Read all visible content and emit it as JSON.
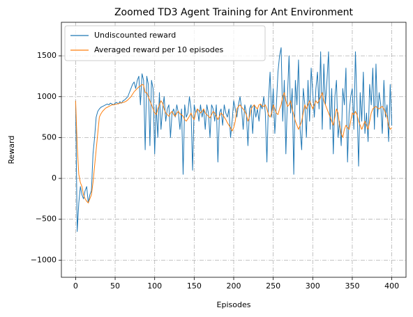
{
  "chart_data": {
    "type": "line",
    "title": "Zoomed TD3 Agent Training for Ant Environment",
    "xlabel": "Episodes",
    "ylabel": "Reward",
    "x": [
      0,
      2,
      4,
      6,
      8,
      10,
      12,
      14,
      16,
      18,
      20,
      22,
      24,
      26,
      28,
      30,
      32,
      34,
      36,
      38,
      40,
      42,
      44,
      46,
      48,
      50,
      52,
      54,
      56,
      58,
      60,
      62,
      64,
      66,
      68,
      70,
      72,
      74,
      76,
      78,
      80,
      82,
      84,
      86,
      88,
      90,
      92,
      94,
      96,
      98,
      100,
      102,
      104,
      106,
      108,
      110,
      112,
      114,
      116,
      118,
      120,
      122,
      124,
      126,
      128,
      130,
      132,
      134,
      136,
      138,
      140,
      142,
      144,
      146,
      148,
      150,
      152,
      154,
      156,
      158,
      160,
      162,
      164,
      166,
      168,
      170,
      172,
      174,
      176,
      178,
      180,
      182,
      184,
      186,
      188,
      190,
      192,
      194,
      196,
      198,
      200,
      202,
      204,
      206,
      208,
      210,
      212,
      214,
      216,
      218,
      220,
      222,
      224,
      226,
      228,
      230,
      232,
      234,
      236,
      238,
      240,
      242,
      244,
      246,
      248,
      250,
      252,
      254,
      256,
      258,
      260,
      262,
      264,
      266,
      268,
      270,
      272,
      274,
      276,
      278,
      280,
      282,
      284,
      286,
      288,
      290,
      292,
      294,
      296,
      298,
      300,
      302,
      304,
      306,
      308,
      310,
      312,
      314,
      316,
      318,
      320,
      322,
      324,
      326,
      328,
      330,
      332,
      334,
      336,
      338,
      340,
      342,
      344,
      346,
      348,
      350,
      352,
      354,
      356,
      358,
      360,
      362,
      364,
      366,
      368,
      370,
      372,
      374,
      376,
      378,
      380,
      382,
      384,
      386,
      388,
      390,
      392,
      394,
      396,
      398,
      400
    ],
    "series": [
      {
        "name": "Undiscounted reward",
        "color": "#1f77b4",
        "values": [
          950,
          -650,
          -300,
          -100,
          -200,
          -250,
          -150,
          -100,
          -300,
          -200,
          -150,
          300,
          500,
          750,
          820,
          850,
          870,
          880,
          890,
          900,
          910,
          900,
          920,
          910,
          900,
          920,
          930,
          910,
          940,
          920,
          950,
          960,
          980,
          1000,
          1050,
          1100,
          1150,
          1180,
          1100,
          1200,
          1250,
          900,
          1280,
          1200,
          350,
          1250,
          1150,
          400,
          1200,
          1100,
          300,
          900,
          500,
          1050,
          600,
          850,
          1000,
          700,
          850,
          900,
          500,
          800,
          850,
          750,
          900,
          800,
          600,
          850,
          50,
          900,
          750,
          800,
          1000,
          850,
          100,
          900,
          800,
          850,
          700,
          900,
          750,
          850,
          600,
          900,
          800,
          500,
          900,
          850,
          700,
          900,
          200,
          800,
          850,
          650,
          900,
          800,
          750,
          850,
          500,
          700,
          950,
          850,
          750,
          900,
          1000,
          850,
          600,
          900,
          800,
          400,
          850,
          900,
          550,
          900,
          750,
          850,
          700,
          900,
          850,
          1000,
          800,
          200,
          950,
          1300,
          750,
          1100,
          550,
          900,
          1300,
          1500,
          1600,
          700,
          1200,
          300,
          1000,
          1500,
          800,
          1100,
          50,
          1200,
          900,
          1450,
          600,
          350,
          1100,
          900,
          500,
          1200,
          700,
          1350,
          1050,
          750,
          1100,
          1300,
          850,
          1550,
          600,
          1400,
          900,
          1200,
          1550,
          600,
          1100,
          300,
          1000,
          1200,
          500,
          700,
          400,
          1100,
          900,
          1350,
          200,
          800,
          1000,
          1100,
          600,
          1550,
          900,
          150,
          1050,
          700,
          1300,
          550,
          800,
          450,
          1150,
          900,
          1350,
          600,
          1400,
          750,
          1050,
          900,
          550,
          1200,
          750,
          900,
          450,
          1150,
          650
        ]
      },
      {
        "name": "Averaged reward per 10 episodes",
        "color": "#ff7f0e",
        "values": [
          950,
          400,
          50,
          -50,
          -100,
          -200,
          -250,
          -280,
          -300,
          -250,
          -200,
          -50,
          150,
          350,
          550,
          750,
          790,
          820,
          840,
          860,
          870,
          880,
          890,
          900,
          900,
          905,
          910,
          915,
          920,
          925,
          930,
          935,
          945,
          960,
          980,
          1000,
          1030,
          1060,
          1080,
          1100,
          1120,
          1130,
          1150,
          1140,
          1050,
          1050,
          1000,
          950,
          900,
          850,
          800,
          780,
          850,
          900,
          950,
          920,
          850,
          800,
          780,
          760,
          800,
          820,
          780,
          760,
          800,
          820,
          790,
          780,
          760,
          720,
          700,
          730,
          760,
          800,
          750,
          720,
          800,
          850,
          830,
          800,
          820,
          850,
          800,
          780,
          760,
          740,
          780,
          820,
          800,
          760,
          720,
          760,
          800,
          780,
          750,
          720,
          680,
          650,
          620,
          580,
          620,
          700,
          850,
          880,
          900,
          870,
          850,
          820,
          780,
          700,
          750,
          850,
          880,
          900,
          870,
          850,
          900,
          910,
          880,
          880,
          900,
          850,
          780,
          750,
          800,
          900,
          850,
          800,
          780,
          850,
          900,
          1000,
          1050,
          950,
          880,
          900,
          950,
          850,
          780,
          700,
          650,
          600,
          650,
          700,
          800,
          900,
          850,
          900,
          950,
          900,
          850,
          900,
          950,
          920,
          950,
          1000,
          1050,
          950,
          900,
          850,
          800,
          750,
          700,
          650,
          750,
          850,
          800,
          650,
          550,
          500,
          600,
          650,
          620,
          600,
          700,
          800,
          780,
          820,
          780,
          700,
          650,
          600,
          650,
          700,
          650,
          600,
          700,
          800,
          850,
          870,
          880,
          860,
          850,
          870,
          880,
          850,
          800,
          750,
          650,
          600,
          620
        ]
      }
    ],
    "xlim": [
      -18,
      418
    ],
    "ylim": [
      -1210,
      1910
    ],
    "xticks": [
      0,
      50,
      100,
      150,
      200,
      250,
      300,
      350,
      400
    ],
    "yticks": [
      {
        "value": -1000,
        "label": "−1000"
      },
      {
        "value": -500,
        "label": "−500"
      },
      0,
      500,
      1000,
      1500
    ],
    "grid": true,
    "legend": "upper left"
  }
}
